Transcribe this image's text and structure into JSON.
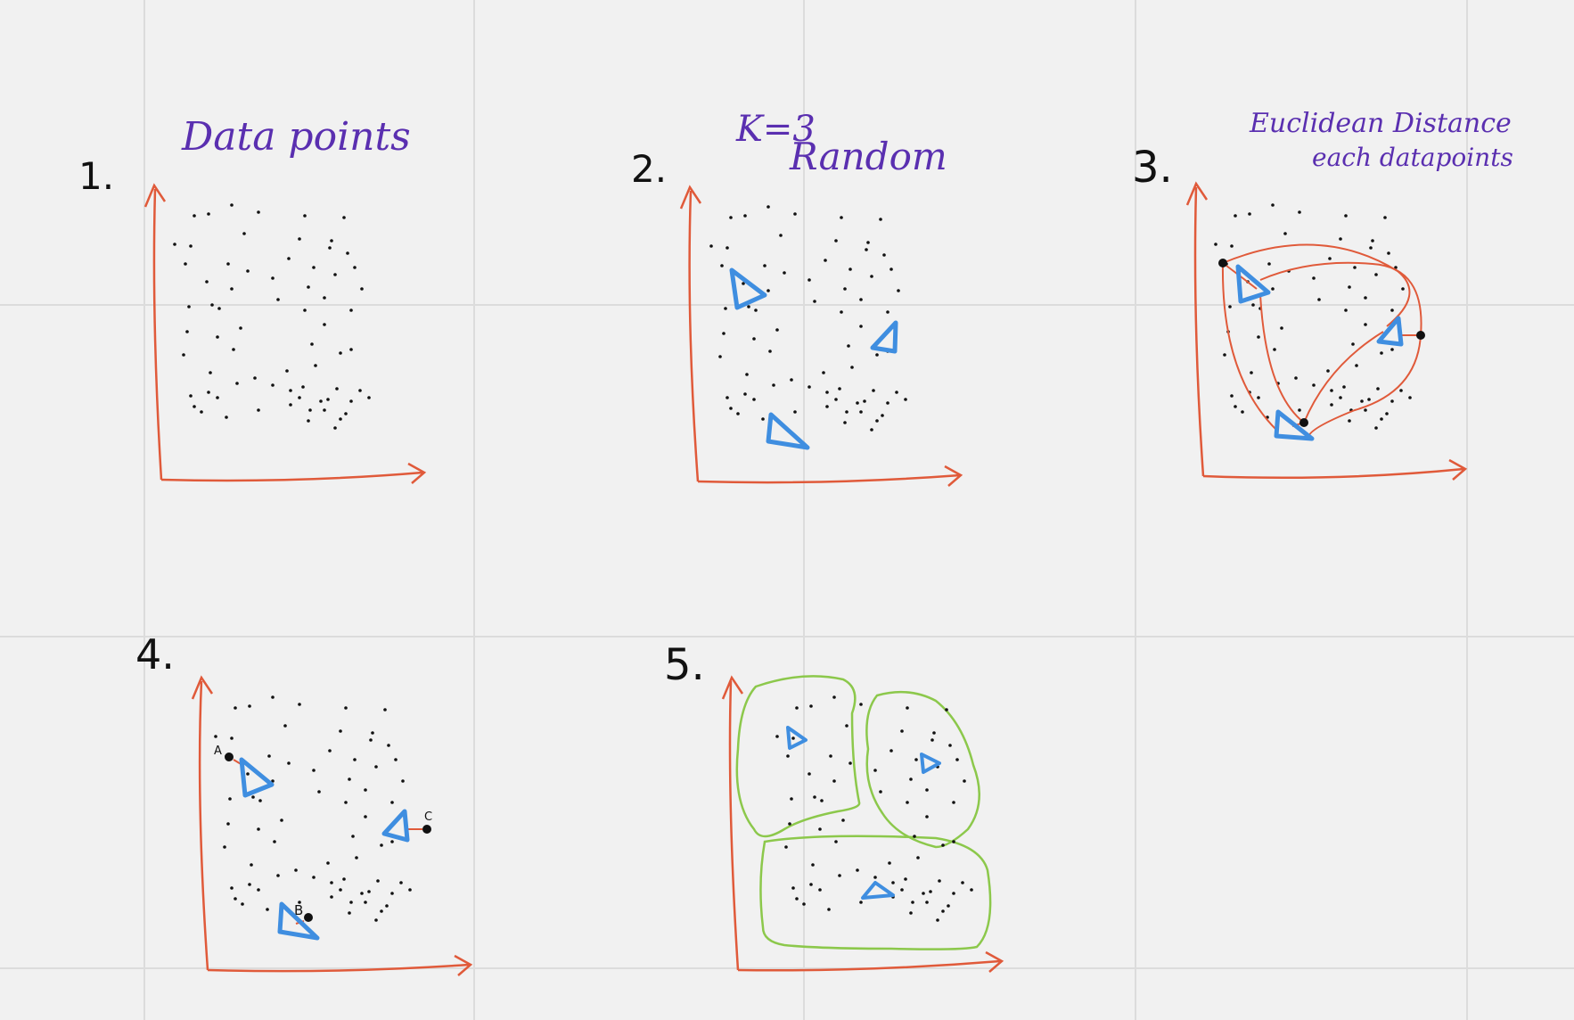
{
  "colors": {
    "background": "#f1f1f1",
    "grid": "#dcdcdc",
    "axis": "#e05a3a",
    "note": "#5a2fb0",
    "number": "#111111",
    "centroid": "#3f8ee0",
    "cluster": "#8cc84b",
    "point": "#111111"
  },
  "panels": [
    {
      "number": "1.",
      "caption": [
        "Data points"
      ],
      "centroids": [],
      "point_labels": []
    },
    {
      "number": "2.",
      "caption": [
        "K=3",
        "Random"
      ],
      "centroids": [
        "triangle-upper-left",
        "triangle-right",
        "triangle-lower"
      ],
      "point_labels": []
    },
    {
      "number": "3.",
      "caption": [
        "Euclidean Distance",
        "each datapoints"
      ],
      "centroids": [
        "triangle-upper-left",
        "triangle-right",
        "triangle-lower"
      ],
      "point_labels": []
    },
    {
      "number": "4.",
      "caption": [],
      "centroids": [
        "triangle-upper-left",
        "triangle-right",
        "triangle-lower"
      ],
      "point_labels": [
        "A",
        "C",
        "B"
      ]
    },
    {
      "number": "5.",
      "caption": [],
      "centroids": [
        "triangle-upper-left",
        "triangle-right",
        "triangle-lower"
      ],
      "clusters": 3,
      "point_labels": []
    }
  ]
}
